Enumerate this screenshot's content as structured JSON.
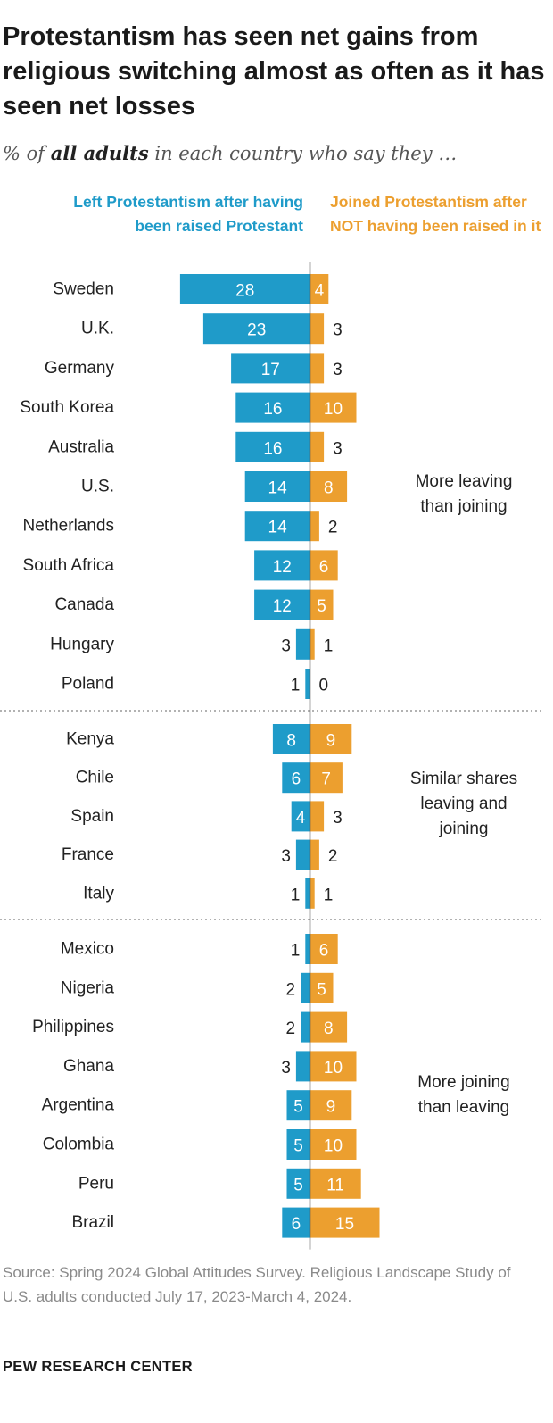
{
  "header": {
    "title": "Protestantism has seen net gains from religious switching almost as often as it has seen net losses",
    "subtitle_prefix": "% of ",
    "subtitle_emphasis": "all adults",
    "subtitle_suffix": " in each country who say they …"
  },
  "colors": {
    "left": "#1f9bc9",
    "right": "#ec9f2f",
    "divider": "#999999",
    "axis": "#555555"
  },
  "chart_data": {
    "type": "bar",
    "orientation": "horizontal-diverging",
    "series": [
      {
        "name": "Left Protestantism after having been raised Protestant",
        "key": "left"
      },
      {
        "name": "Joined Protestantism after NOT having been raised in it",
        "key": "right"
      }
    ],
    "groups": [
      {
        "label": "More leaving than joining",
        "rows": [
          {
            "country": "Sweden",
            "left": 28,
            "right": 4
          },
          {
            "country": "U.K.",
            "left": 23,
            "right": 3
          },
          {
            "country": "Germany",
            "left": 17,
            "right": 3
          },
          {
            "country": "South Korea",
            "left": 16,
            "right": 10
          },
          {
            "country": "Australia",
            "left": 16,
            "right": 3
          },
          {
            "country": "U.S.",
            "left": 14,
            "right": 8
          },
          {
            "country": "Netherlands",
            "left": 14,
            "right": 2
          },
          {
            "country": "South Africa",
            "left": 12,
            "right": 6
          },
          {
            "country": "Canada",
            "left": 12,
            "right": 5
          },
          {
            "country": "Hungary",
            "left": 3,
            "right": 1
          },
          {
            "country": "Poland",
            "left": 1,
            "right": 0
          }
        ]
      },
      {
        "label": "Similar shares leaving and joining",
        "rows": [
          {
            "country": "Kenya",
            "left": 8,
            "right": 9
          },
          {
            "country": "Chile",
            "left": 6,
            "right": 7
          },
          {
            "country": "Spain",
            "left": 4,
            "right": 3
          },
          {
            "country": "France",
            "left": 3,
            "right": 2
          },
          {
            "country": "Italy",
            "left": 1,
            "right": 1
          }
        ]
      },
      {
        "label": "More joining than leaving",
        "rows": [
          {
            "country": "Mexico",
            "left": 1,
            "right": 6
          },
          {
            "country": "Nigeria",
            "left": 2,
            "right": 5
          },
          {
            "country": "Philippines",
            "left": 2,
            "right": 8
          },
          {
            "country": "Ghana",
            "left": 3,
            "right": 10
          },
          {
            "country": "Argentina",
            "left": 5,
            "right": 9
          },
          {
            "country": "Colombia",
            "left": 5,
            "right": 10
          },
          {
            "country": "Peru",
            "left": 5,
            "right": 11
          },
          {
            "country": "Brazil",
            "left": 6,
            "right": 15
          }
        ]
      }
    ]
  },
  "footer": {
    "source": "Source: Spring 2024 Global Attitudes Survey. Religious Landscape Study of U.S. adults conducted July 17, 2023-March 4, 2024.",
    "brand": "PEW RESEARCH CENTER"
  }
}
